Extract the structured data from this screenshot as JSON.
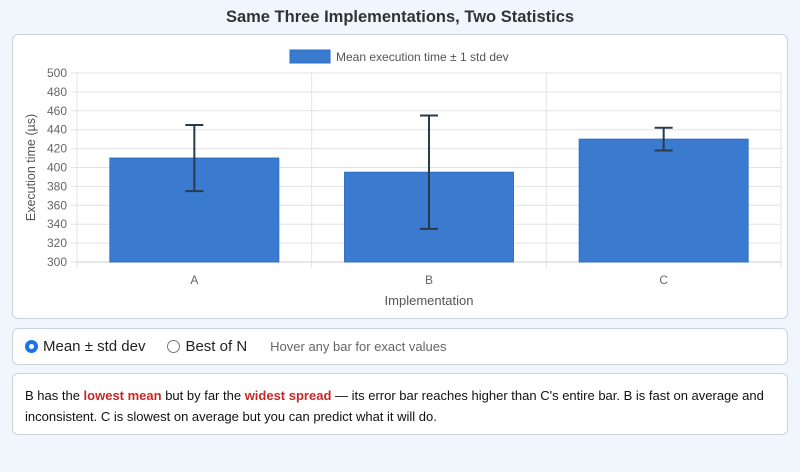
{
  "page": {
    "title": "Same Three Implementations, Two Statistics"
  },
  "controls": {
    "options": [
      {
        "label": "Mean ± std dev",
        "selected": true
      },
      {
        "label": "Best of N",
        "selected": false
      }
    ],
    "hint": "Hover any bar for exact values"
  },
  "note": {
    "p1": "B has the ",
    "h1": "lowest mean",
    "p2": " but by far the ",
    "h2": "widest spread",
    "p3": " — its error bar reaches higher than C's entire bar. B is fast on average and inconsistent. C is slowest on average but you can predict what it will do.",
    "highlight_color": "#c62828"
  },
  "chart_data": {
    "type": "bar",
    "categories": [
      "A",
      "B",
      "C"
    ],
    "series": [
      {
        "name": "Mean execution time ± 1 std dev",
        "values": [
          410,
          395,
          430
        ],
        "error": [
          35,
          60,
          12
        ],
        "color": "#3a7bd0"
      }
    ],
    "xlabel": "Implementation",
    "ylabel": "Execution time (µs)",
    "ylim": [
      300,
      500
    ],
    "yticks": [
      300,
      320,
      340,
      360,
      380,
      400,
      420,
      440,
      460,
      480,
      500
    ],
    "ytick_labels": [
      "300",
      "320",
      "340",
      "360",
      "380",
      "400",
      "420",
      "440",
      "460",
      "480",
      "500"
    ],
    "grid": true,
    "legend": "top-center"
  }
}
